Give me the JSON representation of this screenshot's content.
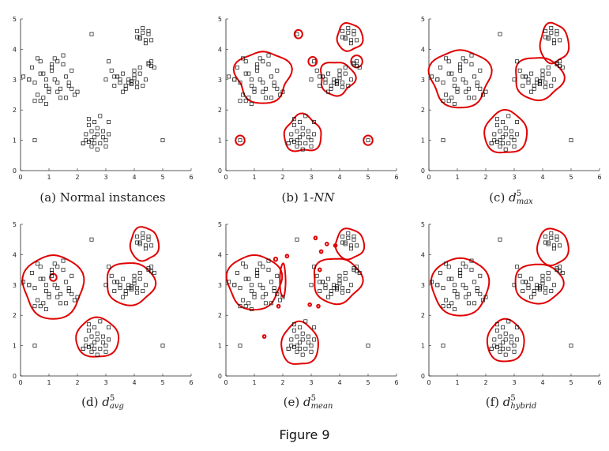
{
  "figure_label": "Figure 9",
  "chart_data": [
    {
      "type": "scatter",
      "panel": "a",
      "caption": {
        "prefix": "(a) Normal instances"
      },
      "xlim": [
        0,
        6
      ],
      "ylim": [
        0,
        5
      ],
      "xticks": [
        0,
        1,
        2,
        3,
        4,
        5,
        6
      ],
      "yticks": [
        0,
        1,
        2,
        3,
        4,
        5
      ],
      "marker": "open-square",
      "contour_style": "none",
      "contours": []
    },
    {
      "type": "scatter",
      "panel": "b",
      "caption": {
        "prefix": "(b) 1-",
        "sym": "NN"
      },
      "xlim": [
        0,
        6
      ],
      "ylim": [
        0,
        5
      ],
      "xticks": [
        0,
        1,
        2,
        3,
        4,
        5,
        6
      ],
      "yticks": [
        0,
        1,
        2,
        3,
        4,
        5
      ],
      "marker": "open-square",
      "contour_style": "red",
      "contours": [
        {
          "type": "blob",
          "cx": 1.3,
          "cy": 3.1,
          "rx": 0.95,
          "ry": 0.85,
          "wobble": 0.15
        },
        {
          "type": "blob",
          "cx": 3.9,
          "cy": 3.05,
          "rx": 0.6,
          "ry": 0.55,
          "wobble": 0.15
        },
        {
          "type": "blob",
          "cx": 4.35,
          "cy": 4.4,
          "rx": 0.45,
          "ry": 0.45,
          "wobble": 0.1
        },
        {
          "type": "blob",
          "cx": 2.7,
          "cy": 1.2,
          "rx": 0.65,
          "ry": 0.6,
          "wobble": 0.15
        },
        {
          "type": "circle",
          "cx": 2.55,
          "cy": 4.5,
          "r": 0.14
        },
        {
          "type": "circle",
          "cx": 0.5,
          "cy": 1.0,
          "r": 0.16
        },
        {
          "type": "circle",
          "cx": 5.0,
          "cy": 1.0,
          "r": 0.16
        },
        {
          "type": "circle",
          "cx": 3.05,
          "cy": 3.6,
          "r": 0.15
        },
        {
          "type": "circle",
          "cx": 4.6,
          "cy": 3.6,
          "r": 0.2
        }
      ]
    },
    {
      "type": "scatter",
      "panel": "c",
      "caption": {
        "prefix": "(c) ",
        "sym": "d",
        "sup": "5",
        "sub": "max"
      },
      "xlim": [
        0,
        6
      ],
      "ylim": [
        0,
        5
      ],
      "xticks": [
        0,
        1,
        2,
        3,
        4,
        5,
        6
      ],
      "yticks": [
        0,
        1,
        2,
        3,
        4,
        5
      ],
      "marker": "open-square",
      "contour_style": "red",
      "contours": [
        {
          "type": "blob",
          "cx": 1.1,
          "cy": 3.05,
          "rx": 1.05,
          "ry": 0.95,
          "wobble": 0.12
        },
        {
          "type": "blob",
          "cx": 3.85,
          "cy": 3.05,
          "rx": 0.85,
          "ry": 0.7,
          "wobble": 0.1
        },
        {
          "type": "blob",
          "cx": 4.4,
          "cy": 4.2,
          "rx": 0.5,
          "ry": 0.65,
          "wobble": 0.1
        },
        {
          "type": "blob",
          "cx": 2.7,
          "cy": 1.25,
          "rx": 0.75,
          "ry": 0.7,
          "wobble": 0.08
        }
      ]
    },
    {
      "type": "scatter",
      "panel": "d",
      "caption": {
        "prefix": "(d) ",
        "sym": "d",
        "sup": "5",
        "sub": "avg"
      },
      "xlim": [
        0,
        6
      ],
      "ylim": [
        0,
        5
      ],
      "xticks": [
        0,
        1,
        2,
        3,
        4,
        5,
        6
      ],
      "yticks": [
        0,
        1,
        2,
        3,
        4,
        5
      ],
      "marker": "open-square",
      "contour_style": "red",
      "contours": [
        {
          "type": "blob",
          "cx": 1.15,
          "cy": 2.95,
          "rx": 1.05,
          "ry": 1.05,
          "wobble": 0.08
        },
        {
          "type": "blob",
          "cx": 3.85,
          "cy": 3.05,
          "rx": 0.85,
          "ry": 0.7,
          "wobble": 0.08
        },
        {
          "type": "blob",
          "cx": 4.35,
          "cy": 4.35,
          "rx": 0.5,
          "ry": 0.55,
          "wobble": 0.08
        },
        {
          "type": "blob",
          "cx": 2.7,
          "cy": 1.25,
          "rx": 0.75,
          "ry": 0.65,
          "wobble": 0.06
        },
        {
          "type": "circle",
          "cx": 1.15,
          "cy": 3.25,
          "r": 0.12
        }
      ]
    },
    {
      "type": "scatter",
      "panel": "e",
      "caption": {
        "prefix": "(e) ",
        "sym": "d",
        "sup": "5",
        "sub": "mean"
      },
      "xlim": [
        0,
        6
      ],
      "ylim": [
        0,
        5
      ],
      "xticks": [
        0,
        1,
        2,
        3,
        4,
        5,
        6
      ],
      "yticks": [
        0,
        1,
        2,
        3,
        4,
        5
      ],
      "marker": "open-square",
      "contour_style": "red",
      "contours": [
        {
          "type": "blob",
          "cx": 1.0,
          "cy": 3.1,
          "rx": 0.95,
          "ry": 0.9,
          "wobble": 0.08
        },
        {
          "type": "blob",
          "cx": 3.9,
          "cy": 3.15,
          "rx": 0.85,
          "ry": 0.75,
          "wobble": 0.1
        },
        {
          "type": "blob",
          "cx": 4.35,
          "cy": 4.35,
          "rx": 0.5,
          "ry": 0.5,
          "wobble": 0.08
        },
        {
          "type": "blob",
          "cx": 2.6,
          "cy": 1.05,
          "rx": 0.65,
          "ry": 0.7,
          "wobble": 0.08
        },
        {
          "type": "blob",
          "cx": 2.0,
          "cy": 3.15,
          "rx": 0.1,
          "ry": 0.55,
          "wobble": 0.05
        },
        {
          "type": "circle",
          "cx": 1.35,
          "cy": 1.3,
          "r": 0.05
        },
        {
          "type": "circle",
          "cx": 1.85,
          "cy": 2.3,
          "r": 0.05
        },
        {
          "type": "circle",
          "cx": 1.75,
          "cy": 3.85,
          "r": 0.06
        },
        {
          "type": "circle",
          "cx": 2.15,
          "cy": 3.95,
          "r": 0.05
        },
        {
          "type": "circle",
          "cx": 3.35,
          "cy": 4.1,
          "r": 0.05
        },
        {
          "type": "circle",
          "cx": 3.55,
          "cy": 4.35,
          "r": 0.05
        },
        {
          "type": "circle",
          "cx": 3.15,
          "cy": 4.55,
          "r": 0.05
        },
        {
          "type": "circle",
          "cx": 3.3,
          "cy": 3.5,
          "r": 0.05
        },
        {
          "type": "circle",
          "cx": 3.85,
          "cy": 4.3,
          "r": 0.05
        },
        {
          "type": "circle",
          "cx": 2.95,
          "cy": 2.35,
          "r": 0.05
        },
        {
          "type": "circle",
          "cx": 3.25,
          "cy": 2.3,
          "r": 0.05
        }
      ]
    },
    {
      "type": "scatter",
      "panel": "f",
      "caption": {
        "prefix": "(f) ",
        "sym": "d",
        "sup": "5",
        "sub": "hybrid"
      },
      "xlim": [
        0,
        6
      ],
      "ylim": [
        0,
        5
      ],
      "xticks": [
        0,
        1,
        2,
        3,
        4,
        5,
        6
      ],
      "yticks": [
        0,
        1,
        2,
        3,
        4,
        5
      ],
      "marker": "open-square",
      "contour_style": "red",
      "contours": [
        {
          "type": "blob",
          "cx": 1.1,
          "cy": 2.95,
          "rx": 1.0,
          "ry": 0.95,
          "wobble": 0.06
        },
        {
          "type": "blob",
          "cx": 3.85,
          "cy": 3.05,
          "rx": 0.85,
          "ry": 0.65,
          "wobble": 0.06
        },
        {
          "type": "blob",
          "cx": 4.35,
          "cy": 4.25,
          "rx": 0.55,
          "ry": 0.6,
          "wobble": 0.06
        },
        {
          "type": "blob",
          "cx": 2.7,
          "cy": 1.15,
          "rx": 0.65,
          "ry": 0.7,
          "wobble": 0.05
        }
      ]
    }
  ],
  "points": {
    "x": [
      0.1,
      0.3,
      0.4,
      0.5,
      0.6,
      0.7,
      0.8,
      0.9,
      1.0,
      1.1,
      1.2,
      1.3,
      1.4,
      1.5,
      1.6,
      1.7,
      1.8,
      1.9,
      2.0,
      0.3,
      0.5,
      0.7,
      0.9,
      1.1,
      1.3,
      1.5,
      1.7,
      0.6,
      0.8,
      1.0,
      1.2,
      1.4,
      0.7,
      0.9,
      1.1,
      1.3,
      1.6,
      1.8,
      2.2,
      2.3,
      2.4,
      2.5,
      2.6,
      2.7,
      2.8,
      2.9,
      3.0,
      3.1,
      2.3,
      2.5,
      2.7,
      2.9,
      2.4,
      2.6,
      2.8,
      3.0,
      2.5,
      2.7,
      2.6,
      3.1,
      2.4,
      2.2,
      3.0,
      3.2,
      3.3,
      3.4,
      3.5,
      3.6,
      3.7,
      3.8,
      3.9,
      4.0,
      4.1,
      4.2,
      4.3,
      4.4,
      3.4,
      3.6,
      3.8,
      4.0,
      4.2,
      3.5,
      3.7,
      3.9,
      4.1,
      3.3,
      3.9,
      4.0,
      4.5,
      4.6,
      4.7,
      4.1,
      4.2,
      4.3,
      4.4,
      4.5,
      4.2,
      4.3,
      4.1,
      4.4,
      4.6,
      4.5,
      4.6,
      4.5,
      3.1,
      2.5,
      0.5,
      5.0
    ],
    "y": [
      3.1,
      3.0,
      3.4,
      2.9,
      2.5,
      3.6,
      3.2,
      3.0,
      2.6,
      3.3,
      3.7,
      2.9,
      2.4,
      3.5,
      3.1,
      2.8,
      3.3,
      2.5,
      2.6,
      3.0,
      2.3,
      3.2,
      2.2,
      3.5,
      2.6,
      3.8,
      2.9,
      3.7,
      2.4,
      2.7,
      3.0,
      2.7,
      2.3,
      2.8,
      3.4,
      3.6,
      2.4,
      2.7,
      0.9,
      1.2,
      1.5,
      0.8,
      1.1,
      1.4,
      0.9,
      1.3,
      1.0,
      1.2,
      1.0,
      1.3,
      0.7,
      1.1,
      1.7,
      1.6,
      1.8,
      0.8,
      1.0,
      1.2,
      0.9,
      1.6,
      0.95,
      0.9,
      3.0,
      3.3,
      2.8,
      3.1,
      2.9,
      3.2,
      2.7,
      3.0,
      2.85,
      3.15,
      2.9,
      3.2,
      2.8,
      3.0,
      3.1,
      2.6,
      2.9,
      3.3,
      3.4,
      3.0,
      2.8,
      2.9,
      2.75,
      3.1,
      2.95,
      3.05,
      3.5,
      3.6,
      3.4,
      4.6,
      4.4,
      4.7,
      4.3,
      4.5,
      4.35,
      4.55,
      4.4,
      4.2,
      4.3,
      4.6,
      3.45,
      3.55,
      3.6,
      4.5,
      1.0,
      1.0
    ]
  }
}
